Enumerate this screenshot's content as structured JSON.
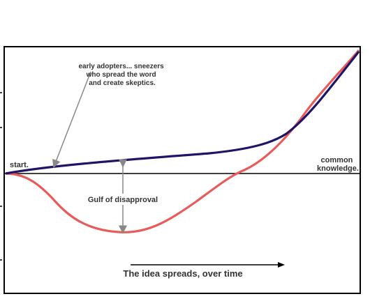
{
  "diagram": {
    "annotation_adopters": {
      "lines": [
        "early adopters... sneezers",
        "who spread the word",
        "and create skeptics."
      ]
    },
    "label_start": "start.",
    "label_common": {
      "lines": [
        "common",
        "knowledge."
      ]
    },
    "label_gulf": "Gulf of disapproval",
    "label_time": "The idea spreads, over time",
    "colors": {
      "adopters_curve": "#1f1566",
      "disapproval_curve": "#e85b5b",
      "axis": "#000000",
      "arrows": "#888888",
      "frame": "#000000"
    }
  }
}
